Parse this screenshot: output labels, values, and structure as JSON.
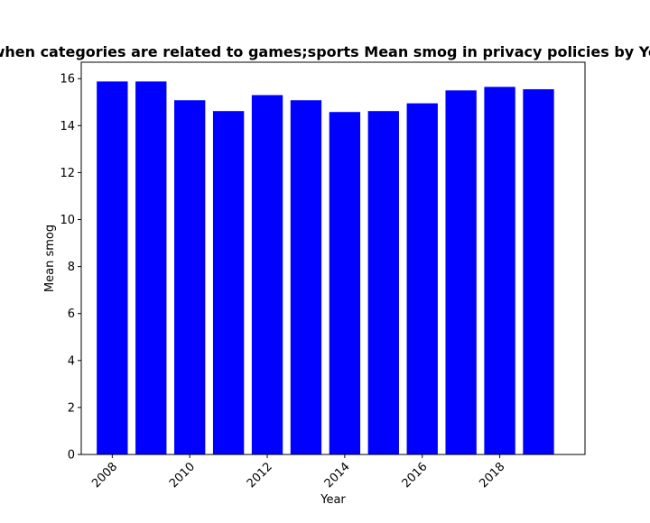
{
  "chart_data": {
    "type": "bar",
    "title": "when categories are related to games;sports Mean smog in privacy policies by Year",
    "xlabel": "Year",
    "ylabel": "Mean smog",
    "x": [
      2008,
      2009,
      2010,
      2011,
      2012,
      2013,
      2014,
      2015,
      2016,
      2017,
      2018,
      2019
    ],
    "values": [
      15.88,
      15.88,
      15.08,
      14.62,
      15.3,
      15.08,
      14.58,
      14.62,
      14.95,
      15.5,
      15.65,
      15.55
    ],
    "xticks": [
      2008,
      2010,
      2012,
      2014,
      2016,
      2018
    ],
    "yticks": [
      0,
      2,
      4,
      6,
      8,
      10,
      12,
      14,
      16
    ],
    "xlim": [
      2007.2,
      2020.2
    ],
    "ylim": [
      0,
      16.7
    ],
    "bar_color": "#0000ff",
    "grid": false,
    "legend": "none"
  }
}
